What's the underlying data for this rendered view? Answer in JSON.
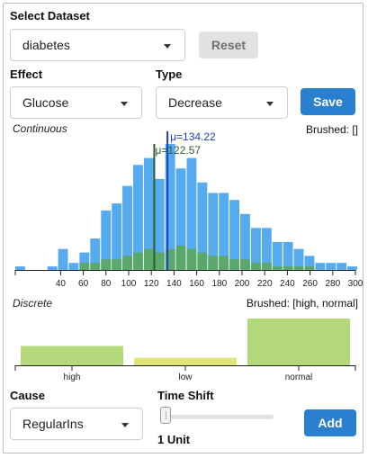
{
  "dataset": {
    "label": "Select Dataset",
    "value": "diabetes",
    "reset_label": "Reset"
  },
  "effect": {
    "label": "Effect",
    "value": "Glucose"
  },
  "type": {
    "label": "Type",
    "value": "Decrease"
  },
  "save_label": "Save",
  "continuous": {
    "title": "Continuous",
    "brushed_label": "Brushed: []",
    "mu_blue_label": "μ=134.22",
    "mu_green_label": "μ=122.57"
  },
  "discrete": {
    "title": "Discrete",
    "brushed_label": "Brushed: [high, normal]"
  },
  "cause": {
    "label": "Cause",
    "value": "RegularIns"
  },
  "time_shift": {
    "label": "Time Shift",
    "value_label": "1 Unit",
    "value": 1
  },
  "add_label": "Add",
  "colors": {
    "histogram_blue": "#56aaf0",
    "histogram_green": "#5aa86a",
    "mean_blue": "#1f3fbf",
    "mean_green": "#2e5d2e",
    "high_bar": "#b3d97a",
    "low_bar": "#dfe576",
    "normal_bar": "#b2d87a",
    "primary_button": "#2a7fcf"
  },
  "chart_data": [
    {
      "type": "bar",
      "title": "Continuous",
      "x_ticks": [
        40,
        60,
        80,
        100,
        120,
        140,
        160,
        180,
        200,
        220,
        240,
        260,
        280,
        300
      ],
      "xlim": [
        0,
        300
      ],
      "bin_width": 9.45,
      "series": [
        {
          "values": [
            1,
            0,
            0,
            1,
            6,
            2,
            5,
            9,
            17,
            19,
            24,
            30,
            32,
            26,
            36,
            29,
            32,
            25,
            22,
            22,
            20,
            16,
            12,
            12,
            8,
            8,
            6,
            4,
            2,
            2,
            2,
            1
          ]
        },
        {
          "values": [
            0,
            0,
            0,
            0,
            0,
            0,
            2,
            2,
            3,
            3,
            4,
            5,
            6,
            5,
            6,
            7,
            6,
            5,
            4,
            4,
            3,
            3,
            2,
            2,
            1,
            1,
            1,
            1,
            0,
            0,
            0,
            0
          ]
        }
      ],
      "means": [
        134.22,
        122.57
      ]
    },
    {
      "type": "bar",
      "title": "Discrete",
      "categories": [
        "high",
        "low",
        "normal"
      ],
      "values": [
        26,
        10,
        63
      ]
    }
  ]
}
